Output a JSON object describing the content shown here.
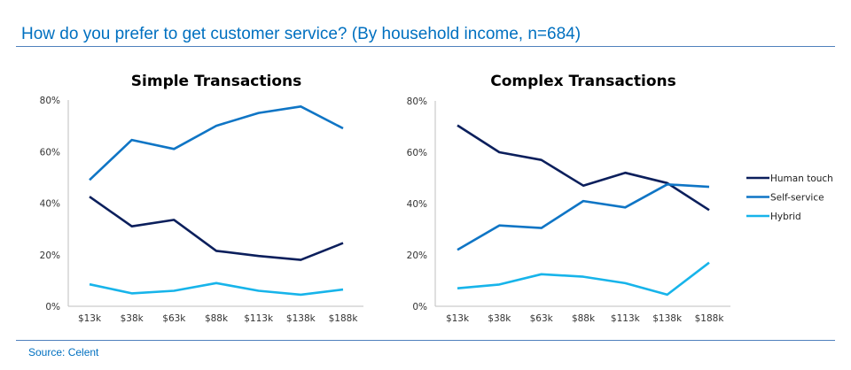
{
  "page": {
    "title": "How do you prefer to get customer service? (By household income, n=684)",
    "source": "Source:  Celent"
  },
  "legend": [
    {
      "name": "Human touch",
      "color": "#0b1f5c"
    },
    {
      "name": "Self-service",
      "color": "#0f75c5"
    },
    {
      "name": "Hybrid",
      "color": "#17b4ea"
    }
  ],
  "chart_data": [
    {
      "type": "line",
      "title": "Simple Transactions",
      "xlabel": "",
      "ylabel": "",
      "categories": [
        "$13k",
        "$38k",
        "$63k",
        "$88k",
        "$113k",
        "$138k",
        "$188k"
      ],
      "ylim": [
        0,
        80
      ],
      "yticks": [
        "0%",
        "20%",
        "40%",
        "60%",
        "80%"
      ],
      "grid": false,
      "series": [
        {
          "name": "Human touch",
          "values": [
            42.5,
            31,
            33.5,
            21.5,
            19.5,
            18,
            24.5
          ]
        },
        {
          "name": "Self-service",
          "values": [
            49,
            64.5,
            61,
            70,
            75,
            77.5,
            69
          ]
        },
        {
          "name": "Hybrid",
          "values": [
            8.5,
            5,
            6,
            9,
            6,
            4.5,
            6.5
          ]
        }
      ]
    },
    {
      "type": "line",
      "title": "Complex Transactions",
      "xlabel": "",
      "ylabel": "",
      "categories": [
        "$13k",
        "$38k",
        "$63k",
        "$88k",
        "$113k",
        "$138k",
        "$188k"
      ],
      "ylim": [
        0,
        80
      ],
      "yticks": [
        "0%",
        "20%",
        "40%",
        "60%",
        "80%"
      ],
      "grid": false,
      "legend_position": "right",
      "series": [
        {
          "name": "Human touch",
          "values": [
            70.5,
            60,
            57,
            47,
            52,
            48,
            37.5
          ]
        },
        {
          "name": "Self-service",
          "values": [
            22,
            31.5,
            30.5,
            41,
            38.5,
            47.5,
            46.5
          ]
        },
        {
          "name": "Hybrid",
          "values": [
            7,
            8.5,
            12.5,
            11.5,
            9,
            4.5,
            17
          ]
        }
      ]
    }
  ]
}
